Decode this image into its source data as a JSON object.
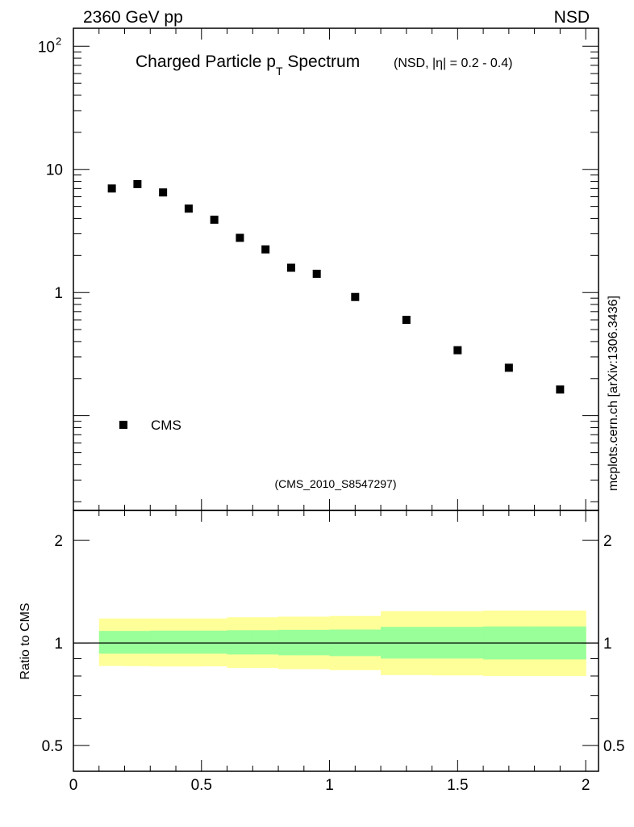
{
  "header": {
    "left": "2360 GeV pp",
    "right": "NSD"
  },
  "title": {
    "main_pre": "Charged Particle p",
    "main_sub": "T",
    "main_post": " Spectrum",
    "qualifier": "(NSD, |η| = 0.2 - 0.4)"
  },
  "analysis_tag": "(CMS_2010_S8547297)",
  "side_label": "mcplots.cern.ch [arXiv:1306.3436]",
  "legend": {
    "label": "CMS"
  },
  "colors": {
    "marker": "#000000",
    "band_outer": "#ffff99",
    "band_inner": "#99ff99",
    "frame": "#000000",
    "tag_text": "#999999"
  },
  "chart_data": [
    {
      "type": "scatter",
      "name": "main",
      "xlim": [
        0,
        2.05
      ],
      "ylim": [
        0.017,
        140
      ],
      "yscale": "log",
      "xlabel": "",
      "ylabel": "",
      "y_ticks": [
        {
          "value": 1,
          "label": "1"
        },
        {
          "value": 10,
          "label": "10"
        },
        {
          "value": 100,
          "label": "10",
          "sup": "2"
        }
      ],
      "legend_position": "bottom-left",
      "series": [
        {
          "name": "CMS",
          "marker": "square",
          "x": [
            0.15,
            0.25,
            0.35,
            0.45,
            0.55,
            0.65,
            0.75,
            0.85,
            0.95,
            1.1,
            1.3,
            1.5,
            1.7,
            1.9
          ],
          "y": [
            7.0,
            7.6,
            6.5,
            4.8,
            3.9,
            2.78,
            2.24,
            1.59,
            1.42,
            0.92,
            0.6,
            0.34,
            0.245,
            0.163
          ]
        }
      ]
    },
    {
      "type": "area",
      "name": "ratio",
      "xlim": [
        0,
        2.05
      ],
      "ylim": [
        0.42,
        2.45
      ],
      "yscale": "log",
      "xlabel": "",
      "ylabel": "Ratio to CMS",
      "x_ticks": [
        {
          "value": 0,
          "label": "0"
        },
        {
          "value": 0.5,
          "label": "0.5"
        },
        {
          "value": 1,
          "label": "1"
        },
        {
          "value": 1.5,
          "label": "1.5"
        },
        {
          "value": 2,
          "label": "2"
        }
      ],
      "y_ticks": [
        {
          "value": 0.5,
          "label": "0.5"
        },
        {
          "value": 1,
          "label": "1"
        },
        {
          "value": 2,
          "label": "2"
        }
      ],
      "reference_line": 1.0,
      "bands": {
        "edges": [
          0.1,
          0.2,
          0.3,
          0.4,
          0.5,
          0.6,
          0.7,
          0.8,
          0.9,
          1.0,
          1.2,
          1.4,
          1.6,
          1.8,
          2.0
        ],
        "outer_lo": [
          0.856,
          0.855,
          0.853,
          0.853,
          0.854,
          0.845,
          0.845,
          0.838,
          0.838,
          0.832,
          0.805,
          0.803,
          0.8,
          0.8
        ],
        "outer_hi": [
          1.18,
          1.18,
          1.18,
          1.18,
          1.18,
          1.19,
          1.19,
          1.195,
          1.195,
          1.2,
          1.24,
          1.24,
          1.245,
          1.245
        ],
        "inner_lo": [
          0.93,
          0.93,
          0.93,
          0.93,
          0.93,
          0.925,
          0.925,
          0.92,
          0.92,
          0.915,
          0.9,
          0.9,
          0.895,
          0.895
        ],
        "inner_hi": [
          1.085,
          1.085,
          1.087,
          1.087,
          1.087,
          1.09,
          1.09,
          1.093,
          1.093,
          1.095,
          1.115,
          1.115,
          1.118,
          1.118
        ]
      }
    }
  ]
}
